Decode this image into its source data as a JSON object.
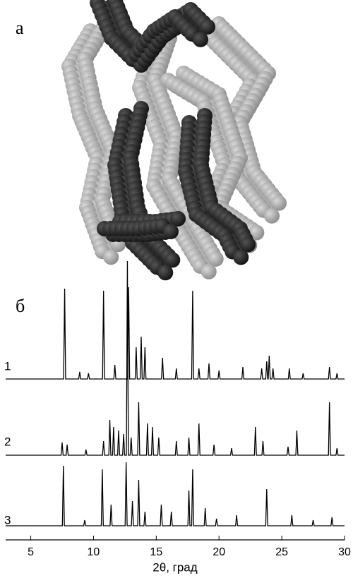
{
  "panel_a": {
    "label": "а"
  },
  "chart_data": {
    "type": "line",
    "panel_label": "б",
    "x_label": "2θ, град",
    "xlim": [
      3,
      30
    ],
    "xticks": [
      5,
      10,
      15,
      20,
      25,
      30
    ],
    "series": [
      {
        "name": "1",
        "color": "#000000",
        "x": [
          3,
          7.62,
          7.7,
          7.78,
          8.82,
          8.9,
          8.98,
          9.52,
          9.6,
          9.68,
          10.72,
          10.8,
          10.88,
          11.62,
          11.7,
          11.78,
          12.72,
          12.8,
          12.88,
          13.32,
          13.4,
          13.48,
          13.72,
          13.8,
          13.88,
          14.02,
          14.1,
          14.18,
          15.42,
          15.5,
          15.58,
          16.52,
          16.6,
          16.68,
          17.82,
          17.9,
          17.98,
          18.32,
          18.4,
          18.48,
          19.12,
          19.2,
          19.28,
          19.92,
          20.0,
          20.08,
          21.82,
          21.9,
          21.98,
          23.32,
          23.4,
          23.48,
          23.72,
          23.8,
          23.88,
          23.92,
          24.0,
          24.08,
          24.22,
          24.3,
          24.38,
          25.52,
          25.6,
          25.68,
          26.62,
          26.7,
          26.78,
          28.72,
          28.8,
          28.88,
          29.32,
          29.4,
          29.48,
          30
        ],
        "values": [
          0,
          0,
          128,
          0,
          0,
          10,
          0,
          0,
          8,
          0,
          0,
          125,
          0,
          0,
          20,
          0,
          0,
          130,
          0,
          0,
          45,
          0,
          0,
          60,
          0,
          0,
          45,
          0,
          0,
          30,
          0,
          0,
          15,
          0,
          0,
          125,
          0,
          0,
          15,
          0,
          0,
          22,
          0,
          0,
          12,
          0,
          0,
          17,
          0,
          0,
          15,
          0,
          0,
          25,
          0,
          0,
          33,
          0,
          0,
          15,
          0,
          0,
          15,
          0,
          0,
          8,
          0,
          0,
          17,
          0,
          0,
          8,
          0,
          0
        ]
      },
      {
        "name": "2",
        "color": "#000000",
        "x": [
          3,
          7.42,
          7.5,
          7.58,
          7.82,
          7.9,
          7.98,
          9.32,
          9.4,
          9.48,
          10.72,
          10.8,
          10.88,
          11.22,
          11.3,
          11.38,
          11.52,
          11.6,
          11.68,
          11.92,
          12.0,
          12.08,
          12.32,
          12.4,
          12.48,
          12.62,
          12.7,
          12.78,
          12.92,
          13.0,
          13.08,
          13.52,
          13.6,
          13.68,
          14.22,
          14.3,
          14.38,
          14.62,
          14.7,
          14.78,
          15.12,
          15.2,
          15.28,
          16.52,
          16.6,
          16.68,
          17.52,
          17.6,
          17.68,
          18.32,
          18.4,
          18.48,
          19.52,
          19.6,
          19.68,
          20.92,
          21.0,
          21.08,
          22.82,
          22.9,
          22.98,
          23.42,
          23.5,
          23.58,
          25.42,
          25.5,
          25.58,
          26.12,
          26.2,
          26.28,
          28.72,
          28.8,
          28.88,
          29.32,
          29.4,
          29.48,
          30
        ],
        "values": [
          0,
          0,
          18,
          0,
          0,
          15,
          0,
          0,
          8,
          0,
          0,
          20,
          0,
          0,
          50,
          0,
          0,
          40,
          0,
          0,
          35,
          0,
          0,
          30,
          0,
          0,
          275,
          0,
          0,
          25,
          0,
          0,
          75,
          0,
          0,
          45,
          0,
          0,
          40,
          0,
          0,
          25,
          0,
          0,
          20,
          0,
          0,
          25,
          0,
          0,
          45,
          0,
          0,
          15,
          0,
          0,
          10,
          0,
          0,
          40,
          0,
          0,
          20,
          0,
          0,
          12,
          0,
          0,
          35,
          0,
          0,
          75,
          0,
          0,
          10,
          0,
          0
        ]
      },
      {
        "name": "3",
        "color": "#000000",
        "x": [
          3,
          7.52,
          7.6,
          7.68,
          9.22,
          9.3,
          9.38,
          10.62,
          10.7,
          10.78,
          11.32,
          11.4,
          11.48,
          12.52,
          12.6,
          12.68,
          13.02,
          13.1,
          13.18,
          13.52,
          13.6,
          13.68,
          14.02,
          14.1,
          14.18,
          15.32,
          15.4,
          15.48,
          16.12,
          16.2,
          16.28,
          17.52,
          17.6,
          17.68,
          17.82,
          17.9,
          17.98,
          18.82,
          18.9,
          18.98,
          19.72,
          19.8,
          19.88,
          21.32,
          21.4,
          21.48,
          23.72,
          23.8,
          23.88,
          25.72,
          25.8,
          25.88,
          27.42,
          27.5,
          27.58,
          28.92,
          29.0,
          29.08,
          30
        ],
        "values": [
          0,
          0,
          85,
          0,
          0,
          8,
          0,
          0,
          80,
          0,
          0,
          30,
          0,
          0,
          90,
          0,
          0,
          35,
          0,
          0,
          65,
          0,
          0,
          20,
          0,
          0,
          30,
          0,
          0,
          20,
          0,
          0,
          50,
          0,
          0,
          80,
          0,
          0,
          25,
          0,
          0,
          10,
          0,
          0,
          15,
          0,
          0,
          52,
          0,
          0,
          15,
          0,
          0,
          8,
          0,
          0,
          12,
          0,
          0
        ]
      }
    ]
  }
}
